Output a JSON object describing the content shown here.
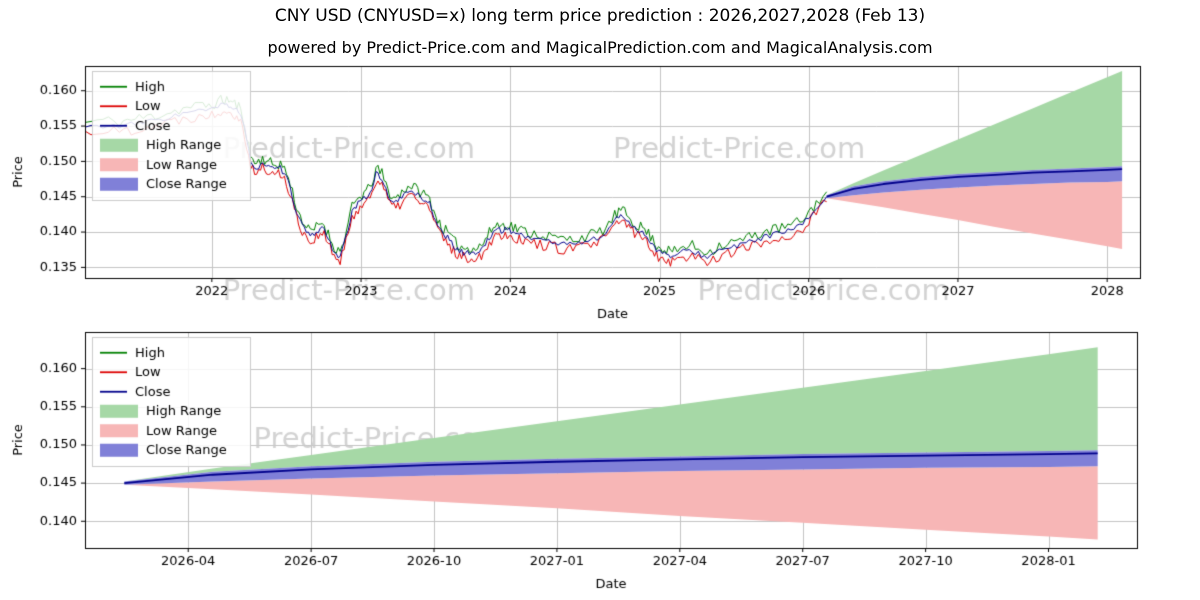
{
  "title": "CNY USD (CNYUSD=x) long term price prediction : 2026,2027,2028 (Feb 13)",
  "subtitle": "powered by Predict-Price.com and MagicalPrediction.com and MagicalAnalysis.com",
  "watermark_text": "Predict-Price.com",
  "legend": [
    "High",
    "Low",
    "Close",
    "High Range",
    "Low Range",
    "Close Range"
  ],
  "colors": {
    "high": "#008000",
    "low": "#dd0000",
    "close": "#00008b",
    "high_range": "#a6d8a6",
    "low_range": "#f7b6b6",
    "close_range": "#8080d8",
    "grid": "#c3c3c3",
    "watermark": "rgba(200,200,200,0.8)"
  },
  "chart_data": [
    {
      "type": "line",
      "title": "",
      "xlabel": "Date",
      "ylabel": "Price",
      "xlim": [
        2021.15,
        2028.22
      ],
      "ylim": [
        0.1335,
        0.1635
      ],
      "xticks": [
        2022,
        2023,
        2024,
        2025,
        2026,
        2027,
        2028
      ],
      "xtick_labels": [
        "2022",
        "2023",
        "2024",
        "2025",
        "2026",
        "2027",
        "2028"
      ],
      "yticks": [
        0.135,
        0.14,
        0.145,
        0.15,
        0.155,
        0.16
      ],
      "grid": true,
      "legend_position": "upper-left",
      "noise": 0.0008,
      "watermarks": [
        [
          0.25,
          0.4
        ],
        [
          0.62,
          0.4
        ],
        [
          0.25,
          1.07
        ],
        [
          0.7,
          1.07
        ]
      ],
      "history": {
        "high_spread": 0.0007,
        "low_spread": 0.0007,
        "x": [
          2021.15,
          2021.27,
          2021.38,
          2021.46,
          2021.54,
          2021.62,
          2021.7,
          2021.78,
          2021.86,
          2021.94,
          2022.0,
          2022.06,
          2022.1,
          2022.14,
          2022.18,
          2022.22,
          2022.26,
          2022.3,
          2022.34,
          2022.38,
          2022.42,
          2022.46,
          2022.5,
          2022.54,
          2022.58,
          2022.62,
          2022.66,
          2022.7,
          2022.74,
          2022.78,
          2022.82,
          2022.86,
          2022.9,
          2022.94,
          2022.98,
          2023.02,
          2023.06,
          2023.1,
          2023.14,
          2023.18,
          2023.22,
          2023.26,
          2023.3,
          2023.34,
          2023.38,
          2023.42,
          2023.46,
          2023.5,
          2023.54,
          2023.58,
          2023.62,
          2023.66,
          2023.7,
          2023.74,
          2023.78,
          2023.82,
          2023.86,
          2023.9,
          2023.94,
          2023.98,
          2024.02,
          2024.06,
          2024.1,
          2024.16,
          2024.22,
          2024.28,
          2024.34,
          2024.4,
          2024.46,
          2024.52,
          2024.58,
          2024.64,
          2024.7,
          2024.74,
          2024.78,
          2024.82,
          2024.86,
          2024.9,
          2024.94,
          2024.98,
          2025.02,
          2025.06,
          2025.1,
          2025.16,
          2025.22,
          2025.28,
          2025.34,
          2025.4,
          2025.46,
          2025.52,
          2025.58,
          2025.64,
          2025.7,
          2025.76,
          2025.82,
          2025.88,
          2025.94,
          2026.0,
          2026.05,
          2026.12
        ],
        "close": [
          0.1548,
          0.1551,
          0.1549,
          0.1552,
          0.1555,
          0.1558,
          0.1562,
          0.1566,
          0.157,
          0.1572,
          0.1573,
          0.1579,
          0.1581,
          0.1576,
          0.1571,
          0.1545,
          0.15,
          0.149,
          0.1498,
          0.1492,
          0.1488,
          0.149,
          0.1478,
          0.145,
          0.142,
          0.1405,
          0.1392,
          0.14,
          0.1408,
          0.139,
          0.1372,
          0.1365,
          0.1392,
          0.1428,
          0.144,
          0.1448,
          0.1455,
          0.1482,
          0.1476,
          0.1452,
          0.144,
          0.1446,
          0.1456,
          0.1459,
          0.1452,
          0.1447,
          0.144,
          0.1416,
          0.14,
          0.1392,
          0.138,
          0.1373,
          0.137,
          0.1372,
          0.137,
          0.1378,
          0.1392,
          0.1404,
          0.1402,
          0.1405,
          0.14,
          0.1397,
          0.1394,
          0.1391,
          0.1389,
          0.1386,
          0.1383,
          0.1383,
          0.1385,
          0.1388,
          0.1391,
          0.1398,
          0.1416,
          0.1424,
          0.1418,
          0.1408,
          0.1402,
          0.1397,
          0.1387,
          0.1375,
          0.137,
          0.1367,
          0.1365,
          0.1372,
          0.1374,
          0.1367,
          0.1366,
          0.1374,
          0.1377,
          0.138,
          0.1384,
          0.1389,
          0.1393,
          0.1396,
          0.1399,
          0.1402,
          0.1408,
          0.142,
          0.1434,
          0.145
        ]
      },
      "forecast": {
        "x": [
          2026.12,
          2026.3,
          2026.5,
          2026.75,
          2027.0,
          2027.25,
          2027.5,
          2027.75,
          2028.0,
          2028.1
        ],
        "close": [
          0.145,
          0.1461,
          0.1468,
          0.1474,
          0.1478,
          0.1481,
          0.1484,
          0.1486,
          0.1488,
          0.1489
        ],
        "high_top": [
          0.1452,
          0.1469,
          0.1487,
          0.1509,
          0.1531,
          0.1553,
          0.1575,
          0.1597,
          0.1619,
          0.1628
        ],
        "low_bottom": [
          0.1448,
          0.1442,
          0.1435,
          0.1426,
          0.1417,
          0.1407,
          0.1398,
          0.1389,
          0.138,
          0.1376
        ],
        "close_high": [
          0.1452,
          0.1465,
          0.1472,
          0.1478,
          0.1482,
          0.1485,
          0.1488,
          0.149,
          0.1492,
          0.1493
        ],
        "close_low": [
          0.1448,
          0.1452,
          0.1456,
          0.146,
          0.1463,
          0.1466,
          0.1468,
          0.147,
          0.1471,
          0.1472
        ]
      }
    },
    {
      "type": "line",
      "title": "",
      "xlabel": "Date",
      "ylabel": "Price",
      "xlim": [
        2026.04,
        2028.18
      ],
      "ylim": [
        0.1365,
        0.1648
      ],
      "xticks": [
        2026.25,
        2026.5,
        2026.75,
        2027.0,
        2027.25,
        2027.5,
        2027.75,
        2028.0
      ],
      "xtick_labels": [
        "2026-04",
        "2026-07",
        "2026-10",
        "2027-01",
        "2027-04",
        "2027-07",
        "2027-10",
        "2028-01"
      ],
      "yticks": [
        0.14,
        0.145,
        0.15,
        0.155,
        0.16
      ],
      "grid": true,
      "legend_position": "upper-left",
      "watermarks": [
        [
          0.28,
          0.5
        ],
        [
          0.66,
          0.5
        ]
      ],
      "forecast": "same_as_chart_0"
    }
  ]
}
